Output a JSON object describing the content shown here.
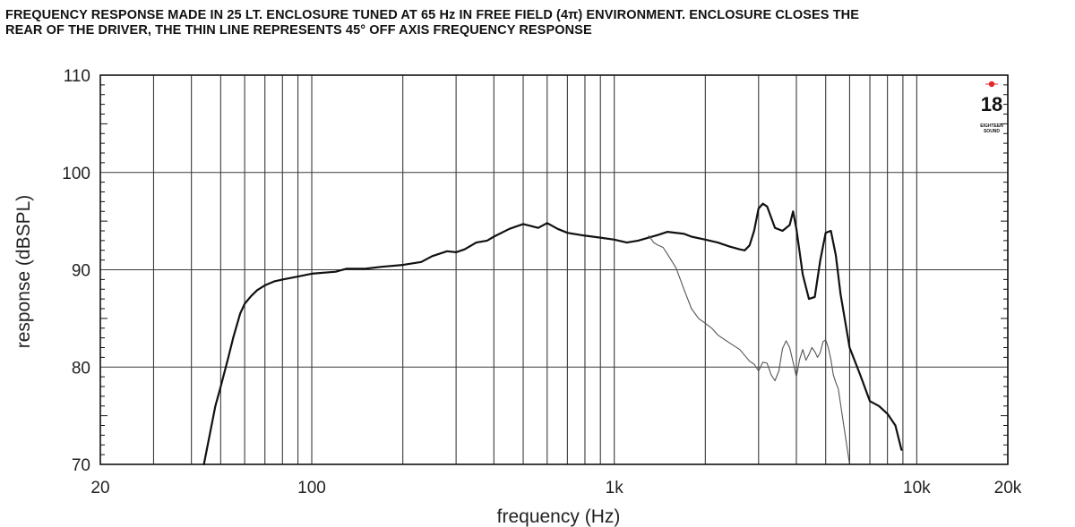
{
  "title_line1": "FREQUENCY RESPONSE MADE IN 25 LT. ENCLOSURE TUNED AT 65 Hz IN FREE FIELD (4π) ENVIRONMENT. ENCLOSURE CLOSES THE",
  "title_line2": "REAR OF THE DRIVER, THE THIN LINE REPRESENTS 45° OFF AXIS FREQUENCY RESPONSE",
  "logo": {
    "number": "18",
    "small_top": "EIGHTEEN",
    "small_bottom": "SOUND",
    "mark_color": "#e3262b"
  },
  "chart_data": {
    "type": "line",
    "title": "FREQUENCY RESPONSE MADE IN 25 LT. ENCLOSURE TUNED AT 65 Hz IN FREE FIELD (4π) ENVIRONMENT. ENCLOSURE CLOSES THE REAR OF THE DRIVER, THE THIN LINE REPRESENTS 45° OFF AXIS FREQUENCY RESPONSE",
    "xlabel": "frequency (Hz)",
    "ylabel": "response (dBSPL)",
    "xscale": "log",
    "xlim": [
      20,
      20000
    ],
    "ylim": [
      70,
      110
    ],
    "x_ticks": [
      {
        "value": 20,
        "label": "20"
      },
      {
        "value": 100,
        "label": "100"
      },
      {
        "value": 1000,
        "label": "1k"
      },
      {
        "value": 10000,
        "label": "10k"
      },
      {
        "value": 20000,
        "label": "20k"
      }
    ],
    "y_ticks": [
      {
        "value": 70,
        "label": "70"
      },
      {
        "value": 80,
        "label": "80"
      },
      {
        "value": 90,
        "label": "90"
      },
      {
        "value": 100,
        "label": "100"
      },
      {
        "value": 110,
        "label": "110"
      }
    ],
    "grid": true,
    "grid_x": [
      30,
      40,
      50,
      60,
      70,
      80,
      90,
      100,
      200,
      300,
      400,
      500,
      600,
      700,
      800,
      900,
      1000,
      2000,
      3000,
      4000,
      5000,
      6000,
      7000,
      8000,
      9000,
      10000,
      20000
    ],
    "grid_y": [
      80,
      90,
      100
    ],
    "series": [
      {
        "style": "thick",
        "x": [
          44,
          48,
          50,
          53,
          55,
          58,
          60,
          63,
          66,
          70,
          75,
          80,
          90,
          100,
          120,
          130,
          150,
          170,
          200,
          230,
          250,
          280,
          300,
          320,
          350,
          380,
          400,
          450,
          500,
          530,
          560,
          600,
          650,
          700,
          800,
          900,
          1000,
          1100,
          1200,
          1400,
          1500,
          1700,
          1800,
          2000,
          2200,
          2400,
          2600,
          2700,
          2800,
          2900,
          3000,
          3100,
          3200,
          3400,
          3600,
          3800,
          3900,
          4000,
          4200,
          4400,
          4600,
          4800,
          5000,
          5200,
          5400,
          5600,
          6000,
          6500,
          7000,
          7500,
          8000,
          8500,
          8900
        ],
        "y": [
          70,
          76,
          78,
          81,
          83,
          85.5,
          86.5,
          87.3,
          87.9,
          88.4,
          88.8,
          89.0,
          89.3,
          89.6,
          89.8,
          90.1,
          90.1,
          90.3,
          90.5,
          90.8,
          91.4,
          91.9,
          91.8,
          92.1,
          92.8,
          93.0,
          93.4,
          94.2,
          94.7,
          94.5,
          94.3,
          94.8,
          94.2,
          93.8,
          93.5,
          93.3,
          93.1,
          92.8,
          93.0,
          93.6,
          93.9,
          93.7,
          93.4,
          93.1,
          92.8,
          92.4,
          92.1,
          92.0,
          92.5,
          94.0,
          96.3,
          96.8,
          96.5,
          94.3,
          94.0,
          94.6,
          96.0,
          94.2,
          89.5,
          87.0,
          87.2,
          91.0,
          93.8,
          94.0,
          91.5,
          87.5,
          82.0,
          79.2,
          76.5,
          76.0,
          75.2,
          74.0,
          71.5
        ]
      },
      {
        "style": "thin",
        "x": [
          1300,
          1350,
          1400,
          1450,
          1500,
          1600,
          1700,
          1800,
          1900,
          2000,
          2100,
          2200,
          2400,
          2600,
          2800,
          2900,
          3000,
          3100,
          3200,
          3300,
          3400,
          3500,
          3600,
          3700,
          3800,
          3900,
          4000,
          4100,
          4200,
          4300,
          4400,
          4500,
          4600,
          4700,
          4800,
          4900,
          5000,
          5100,
          5200,
          5300,
          5400,
          5500,
          5600,
          5800,
          6000
        ],
        "y": [
          93.5,
          92.8,
          92.5,
          92.3,
          91.6,
          90.2,
          88.0,
          86.0,
          85.0,
          84.5,
          84.0,
          83.3,
          82.5,
          81.8,
          80.6,
          80.3,
          79.6,
          80.5,
          80.4,
          79.2,
          78.6,
          79.6,
          81.9,
          82.7,
          82.0,
          80.5,
          79.0,
          80.8,
          81.8,
          80.7,
          81.3,
          82.0,
          81.6,
          81.0,
          81.5,
          82.6,
          82.8,
          82.0,
          80.8,
          79.2,
          78.4,
          77.8,
          76.2,
          73.0,
          70.0
        ]
      }
    ]
  }
}
